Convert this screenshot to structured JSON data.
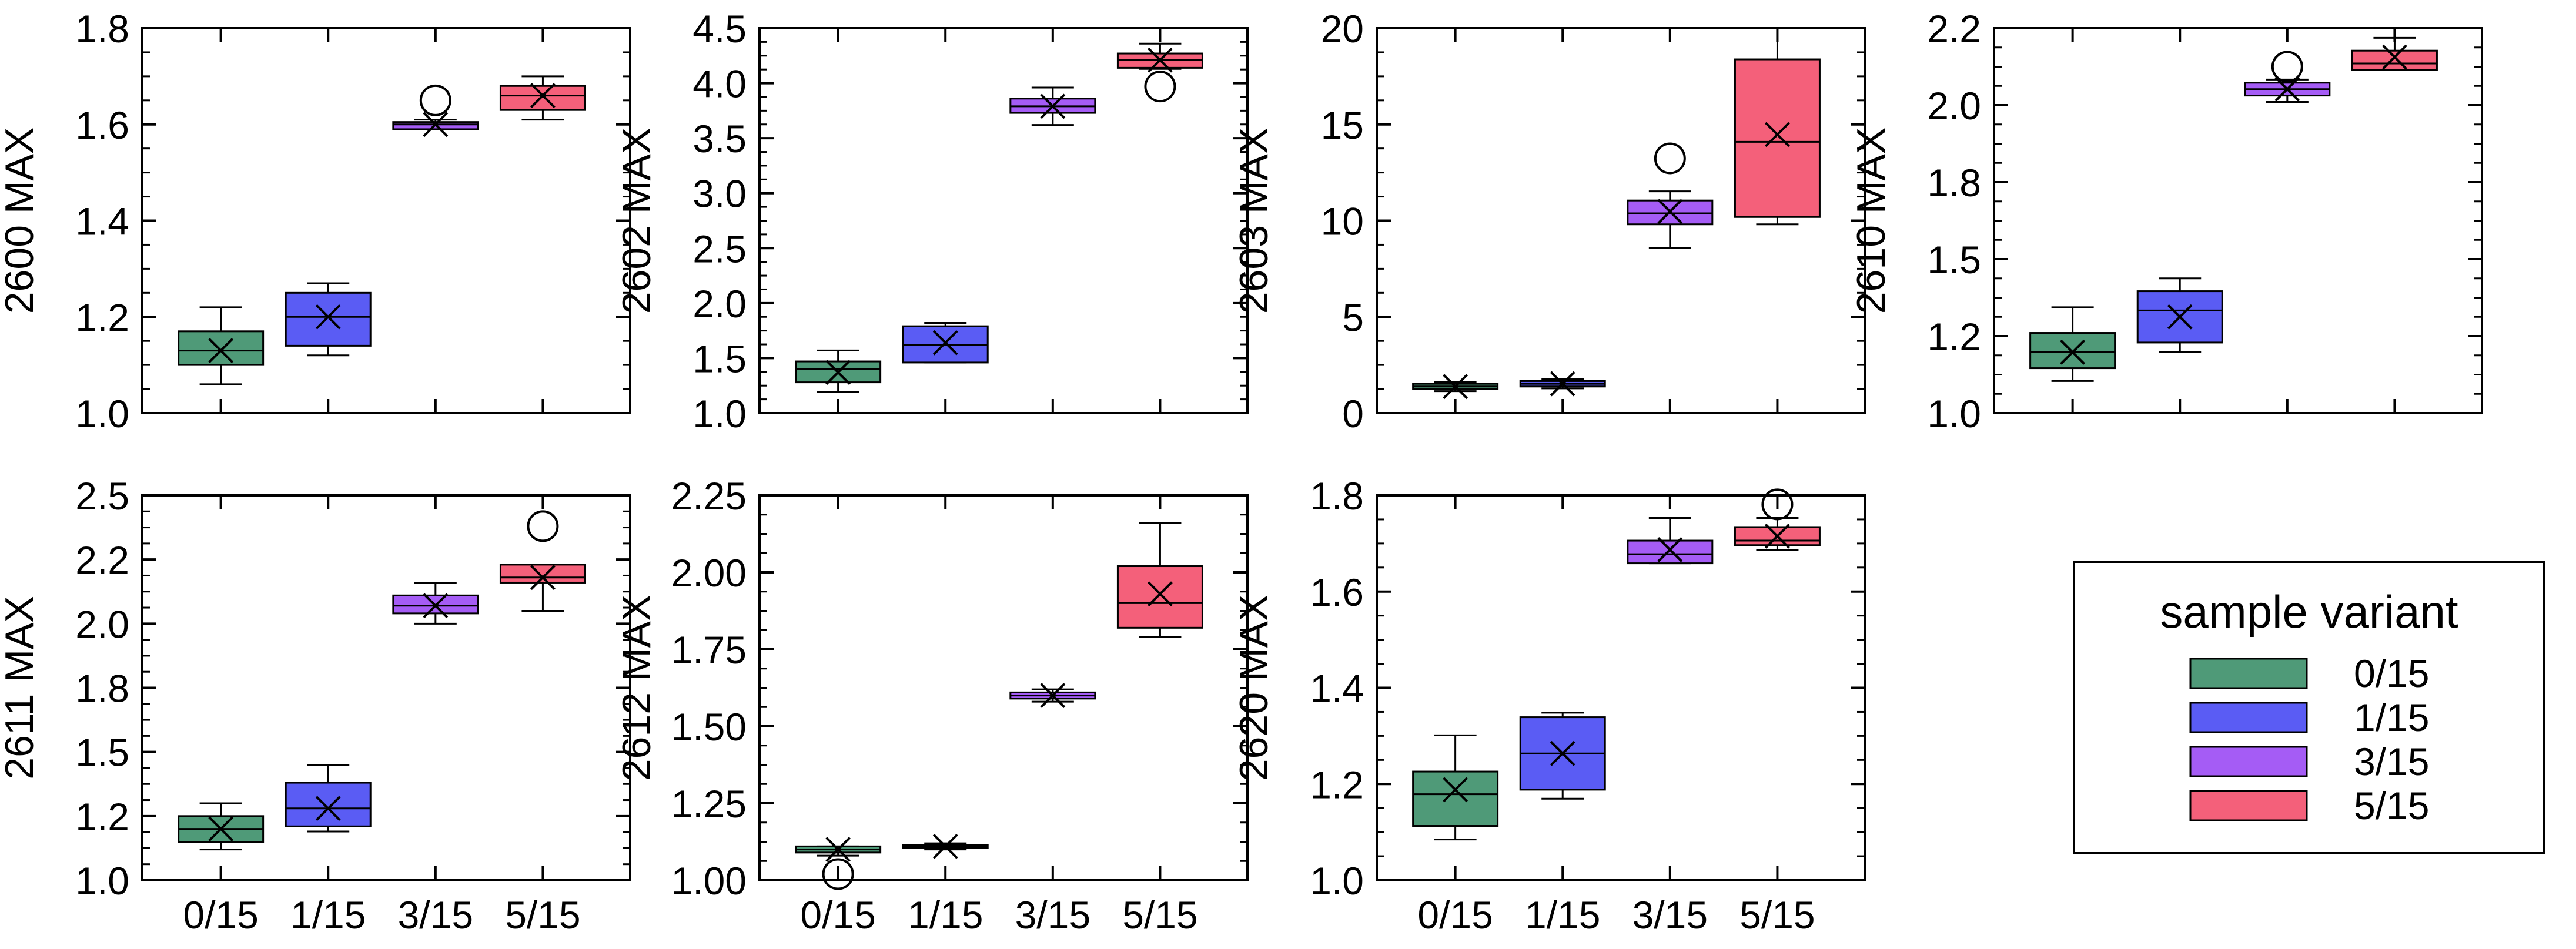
{
  "chart_data": {
    "type": "box",
    "categories": [
      "0/15",
      "1/15",
      "3/15",
      "5/15"
    ],
    "colors": [
      "#4f9a78",
      "#5a5cf4",
      "#a55cf5",
      "#f4607a"
    ],
    "legend": {
      "title": "sample variant",
      "entries": [
        "0/15",
        "1/15",
        "3/15",
        "5/15"
      ],
      "placement": "bottom-right"
    },
    "panels": [
      {
        "ylabel": "2600 MAX",
        "ylim": [
          1.0,
          1.8
        ],
        "yticks": [
          "1.0",
          "1.2",
          "1.4",
          "1.6",
          "1.8"
        ],
        "show_xticklabels": false,
        "boxes": [
          {
            "min": 1.06,
            "q1": 1.1,
            "median": 1.13,
            "q3": 1.17,
            "max": 1.22,
            "mean": 1.13,
            "outliers": []
          },
          {
            "min": 1.12,
            "q1": 1.14,
            "median": 1.2,
            "q3": 1.25,
            "max": 1.27,
            "mean": 1.2,
            "outliers": []
          },
          {
            "min": 1.59,
            "q1": 1.59,
            "median": 1.6,
            "q3": 1.605,
            "max": 1.61,
            "mean": 1.6,
            "outliers": [
              1.65
            ]
          },
          {
            "min": 1.61,
            "q1": 1.63,
            "median": 1.66,
            "q3": 1.68,
            "max": 1.7,
            "mean": 1.66,
            "outliers": []
          }
        ]
      },
      {
        "ylabel": "2602 MAX",
        "ylim": [
          1.0,
          4.5
        ],
        "yticks": [
          "1.0",
          "1.5",
          "2.0",
          "2.5",
          "3.0",
          "3.5",
          "4.0",
          "4.5"
        ],
        "show_xticklabels": false,
        "boxes": [
          {
            "min": 1.19,
            "q1": 1.28,
            "median": 1.4,
            "q3": 1.47,
            "max": 1.57,
            "mean": 1.37,
            "outliers": []
          },
          {
            "min": 1.46,
            "q1": 1.46,
            "median": 1.62,
            "q3": 1.79,
            "max": 1.82,
            "mean": 1.64,
            "outliers": []
          },
          {
            "min": 3.62,
            "q1": 3.73,
            "median": 3.79,
            "q3": 3.86,
            "max": 3.96,
            "mean": 3.79,
            "outliers": []
          },
          {
            "min": 4.13,
            "q1": 4.14,
            "median": 4.21,
            "q3": 4.27,
            "max": 4.36,
            "mean": 4.21,
            "outliers": [
              3.97
            ]
          }
        ]
      },
      {
        "ylabel": "2603 MAX",
        "ylim": [
          0,
          21
        ],
        "yticks": [
          "0",
          "5",
          "10",
          "15",
          "20"
        ],
        "show_xticklabels": false,
        "boxes": [
          {
            "min": 1.2,
            "q1": 1.3,
            "median": 1.45,
            "q3": 1.6,
            "max": 1.7,
            "mean": 1.45,
            "outliers": []
          },
          {
            "min": 1.35,
            "q1": 1.45,
            "median": 1.6,
            "q3": 1.75,
            "max": 1.85,
            "mean": 1.6,
            "outliers": []
          },
          {
            "min": 9.0,
            "q1": 10.3,
            "median": 10.9,
            "q3": 11.6,
            "max": 12.1,
            "mean": 11.0,
            "outliers": [
              13.9
            ]
          },
          {
            "min": 10.3,
            "q1": 10.7,
            "median": 14.8,
            "q3": 19.3,
            "max": 21.0,
            "mean": 15.2,
            "outliers": []
          }
        ]
      },
      {
        "ylabel": "2610 MAX",
        "ylim": [
          1.0,
          2.2
        ],
        "yticks": [
          "1.0",
          "1.2",
          "1.5",
          "1.8",
          "2.0",
          "2.2"
        ],
        "show_xticklabels": false,
        "boxes": [
          {
            "min": 1.1,
            "q1": 1.14,
            "median": 1.19,
            "q3": 1.25,
            "max": 1.33,
            "mean": 1.19,
            "outliers": []
          },
          {
            "min": 1.19,
            "q1": 1.22,
            "median": 1.32,
            "q3": 1.38,
            "max": 1.42,
            "mean": 1.3,
            "outliers": []
          },
          {
            "min": 1.97,
            "q1": 1.99,
            "median": 2.01,
            "q3": 2.03,
            "max": 2.04,
            "mean": 2.01,
            "outliers": [
              2.08
            ]
          },
          {
            "min": 2.07,
            "q1": 2.07,
            "median": 2.09,
            "q3": 2.13,
            "max": 2.17,
            "mean": 2.11,
            "outliers": []
          }
        ]
      },
      {
        "ylabel": "2611 MAX",
        "ylim": [
          1.0,
          2.5
        ],
        "yticks": [
          "1.0",
          "1.2",
          "1.5",
          "1.8",
          "2.0",
          "2.2",
          "2.5"
        ],
        "show_xticklabels": true,
        "boxes": [
          {
            "min": 1.12,
            "q1": 1.15,
            "median": 1.2,
            "q3": 1.25,
            "max": 1.3,
            "mean": 1.2,
            "outliers": []
          },
          {
            "min": 1.19,
            "q1": 1.21,
            "median": 1.28,
            "q3": 1.38,
            "max": 1.45,
            "mean": 1.28,
            "outliers": []
          },
          {
            "min": 2.0,
            "q1": 2.04,
            "median": 2.07,
            "q3": 2.11,
            "max": 2.16,
            "mean": 2.07,
            "outliers": []
          },
          {
            "min": 2.05,
            "q1": 2.16,
            "median": 2.18,
            "q3": 2.23,
            "max": 2.23,
            "mean": 2.18,
            "outliers": [
              2.38
            ]
          }
        ]
      },
      {
        "ylabel": "2612 MAX",
        "ylim": [
          1.0,
          2.25
        ],
        "yticks": [
          "1.00",
          "1.25",
          "1.50",
          "1.75",
          "2.00",
          "2.25"
        ],
        "show_xticklabels": true,
        "boxes": [
          {
            "min": 1.08,
            "q1": 1.09,
            "median": 1.1,
            "q3": 1.11,
            "max": 1.11,
            "mean": 1.1,
            "outliers": [
              1.02
            ]
          },
          {
            "min": 1.1,
            "q1": 1.105,
            "median": 1.11,
            "q3": 1.115,
            "max": 1.12,
            "mean": 1.11,
            "outliers": []
          },
          {
            "min": 1.58,
            "q1": 1.59,
            "median": 1.6,
            "q3": 1.61,
            "max": 1.62,
            "mean": 1.6,
            "outliers": []
          },
          {
            "min": 1.79,
            "q1": 1.82,
            "median": 1.9,
            "q3": 2.02,
            "max": 2.16,
            "mean": 1.93,
            "outliers": []
          }
        ]
      },
      {
        "ylabel": "2620 MAX",
        "ylim": [
          1.0,
          1.85
        ],
        "yticks": [
          "1.0",
          "1.2",
          "1.4",
          "1.6",
          "1.8"
        ],
        "show_xticklabels": true,
        "boxes": [
          {
            "min": 1.09,
            "q1": 1.12,
            "median": 1.19,
            "q3": 1.24,
            "max": 1.32,
            "mean": 1.2,
            "outliers": []
          },
          {
            "min": 1.18,
            "q1": 1.2,
            "median": 1.28,
            "q3": 1.36,
            "max": 1.37,
            "mean": 1.28,
            "outliers": []
          },
          {
            "min": 1.7,
            "q1": 1.7,
            "median": 1.72,
            "q3": 1.75,
            "max": 1.8,
            "mean": 1.73,
            "outliers": []
          },
          {
            "min": 1.73,
            "q1": 1.74,
            "median": 1.75,
            "q3": 1.78,
            "max": 1.8,
            "mean": 1.76,
            "outliers": [
              1.83
            ]
          }
        ]
      }
    ]
  }
}
